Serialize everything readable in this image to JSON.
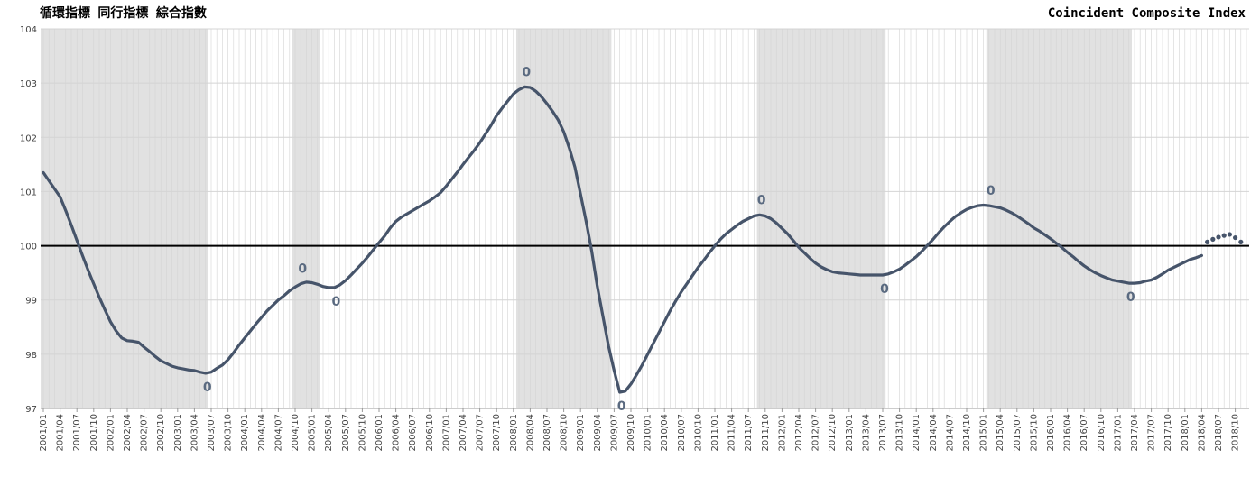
{
  "chart_data": {
    "type": "line",
    "title": "循環指標 同行指標 綜合指數",
    "subtitle": "Coincident Composite Index",
    "categories": [
      "2001/01",
      null,
      null,
      "2001/04",
      null,
      null,
      "2001/07",
      null,
      null,
      "2001/10",
      null,
      null,
      "2002/01",
      null,
      null,
      "2002/04",
      null,
      null,
      "2002/07",
      null,
      null,
      "2002/10",
      null,
      null,
      "2003/01",
      null,
      null,
      "2003/04",
      null,
      null,
      "2003/07",
      null,
      null,
      "2003/10",
      null,
      null,
      "2004/01",
      null,
      null,
      "2004/04",
      null,
      null,
      "2004/07",
      null,
      null,
      "2004/10",
      null,
      null,
      "2005/01",
      null,
      null,
      "2005/04",
      null,
      null,
      "2005/07",
      null,
      null,
      "2005/10",
      null,
      null,
      "2006/01",
      null,
      null,
      "2006/04",
      null,
      null,
      "2006/07",
      null,
      null,
      "2006/10",
      null,
      null,
      "2007/01",
      null,
      null,
      "2007/04",
      null,
      null,
      "2007/07",
      null,
      null,
      "2007/10",
      null,
      null,
      "2008/01",
      null,
      null,
      "2008/04",
      null,
      null,
      "2008/07",
      null,
      null,
      "2008/10",
      null,
      null,
      "2009/01",
      null,
      null,
      "2009/04",
      null,
      null,
      "2009/07",
      null,
      null,
      "2009/10",
      null,
      null,
      "2010/01",
      null,
      null,
      "2010/04",
      null,
      null,
      "2010/07",
      null,
      null,
      "2010/10",
      null,
      null,
      "2011/01",
      null,
      null,
      "2011/04",
      null,
      null,
      "2011/07",
      null,
      null,
      "2011/10",
      null,
      null,
      "2012/01",
      null,
      null,
      "2012/04",
      null,
      null,
      "2012/07",
      null,
      null,
      "2012/10",
      null,
      null,
      "2013/01",
      null,
      null,
      "2013/04",
      null,
      null,
      "2013/07",
      null,
      null,
      "2013/10",
      null,
      null,
      "2014/01",
      null,
      null,
      "2014/04",
      null,
      null,
      "2014/07",
      null,
      null,
      "2014/10",
      null,
      null,
      "2015/01",
      null,
      null,
      "2015/04",
      null,
      null,
      "2015/07",
      null,
      null,
      "2015/10",
      null,
      null,
      "2016/01",
      null,
      null,
      "2016/04",
      null,
      null,
      "2016/07",
      null,
      null,
      "2016/10",
      null,
      null,
      "2017/01",
      null,
      null,
      "2017/04",
      null,
      null,
      "2017/07",
      null,
      null,
      "2017/10",
      null,
      null,
      "2018/01",
      null,
      null,
      "2018/04",
      null,
      null,
      "2018/07",
      null,
      null,
      "2018/10",
      null,
      null
    ],
    "series": [
      {
        "color": "#46546a",
        "style": "solid",
        "values": [
          101.35,
          101.2,
          101.05,
          100.9,
          100.65,
          100.38,
          100.1,
          99.82,
          99.55,
          99.3,
          99.05,
          98.82,
          98.6,
          98.43,
          98.3,
          98.25,
          98.24,
          98.22,
          98.13,
          98.05,
          97.96,
          97.88,
          97.83,
          97.78,
          97.75,
          97.73,
          97.71,
          97.7,
          97.67,
          97.65,
          97.67,
          97.74,
          97.8,
          97.9,
          98.03,
          98.17,
          98.3,
          98.43,
          98.56,
          98.68,
          98.8,
          98.9,
          99.0,
          99.08,
          99.17,
          99.24,
          99.3,
          99.33,
          99.32,
          99.29,
          99.25,
          99.23,
          99.23,
          99.28,
          99.36,
          99.46,
          99.57,
          99.68,
          99.8,
          99.93,
          100.06,
          100.18,
          100.33,
          100.45,
          100.53,
          100.59,
          100.65,
          100.71,
          100.77,
          100.83,
          100.9,
          100.98,
          101.1,
          101.23,
          101.36,
          101.5,
          101.63,
          101.76,
          101.9,
          102.06,
          102.22,
          102.4,
          102.54,
          102.67,
          102.8,
          102.88,
          102.93,
          102.92,
          102.85,
          102.75,
          102.62,
          102.48,
          102.32,
          102.1,
          101.8,
          101.45,
          100.95,
          100.45,
          99.9,
          99.25,
          98.7,
          98.15,
          97.7,
          97.3,
          97.32,
          97.45,
          97.62,
          97.8,
          98.0,
          98.2,
          98.4,
          98.6,
          98.8,
          98.98,
          99.15,
          99.3,
          99.45,
          99.6,
          99.73,
          99.87,
          100.0,
          100.12,
          100.22,
          100.3,
          100.38,
          100.45,
          100.5,
          100.55,
          100.57,
          100.55,
          100.5,
          100.42,
          100.32,
          100.22,
          100.1,
          99.97,
          99.87,
          99.77,
          99.68,
          99.61,
          99.56,
          99.52,
          99.5,
          99.49,
          99.48,
          99.47,
          99.46,
          99.46,
          99.46,
          99.46,
          99.46,
          99.48,
          99.52,
          99.57,
          99.64,
          99.72,
          99.8,
          99.9,
          100.01,
          100.12,
          100.24,
          100.35,
          100.45,
          100.54,
          100.61,
          100.67,
          100.71,
          100.74,
          100.75,
          100.74,
          100.72,
          100.7,
          100.66,
          100.61,
          100.55,
          100.48,
          100.41,
          100.33,
          100.27,
          100.2,
          100.13,
          100.05,
          99.97,
          99.88,
          99.8,
          99.71,
          99.63,
          99.56,
          99.5,
          99.45,
          99.41,
          99.37,
          99.35,
          99.33,
          99.31,
          99.31,
          99.32,
          99.35,
          99.37,
          99.42,
          99.48,
          99.55,
          99.6,
          99.65,
          99.7,
          99.75,
          99.78,
          99.82,
          null,
          null,
          null,
          null,
          null,
          null,
          null,
          null
        ]
      },
      {
        "color": "#46546a",
        "style": "dots",
        "values": [
          null,
          null,
          null,
          null,
          null,
          null,
          null,
          null,
          null,
          null,
          null,
          null,
          null,
          null,
          null,
          null,
          null,
          null,
          null,
          null,
          null,
          null,
          null,
          null,
          null,
          null,
          null,
          null,
          null,
          null,
          null,
          null,
          null,
          null,
          null,
          null,
          null,
          null,
          null,
          null,
          null,
          null,
          null,
          null,
          null,
          null,
          null,
          null,
          null,
          null,
          null,
          null,
          null,
          null,
          null,
          null,
          null,
          null,
          null,
          null,
          null,
          null,
          null,
          null,
          null,
          null,
          null,
          null,
          null,
          null,
          null,
          null,
          null,
          null,
          null,
          null,
          null,
          null,
          null,
          null,
          null,
          null,
          null,
          null,
          null,
          null,
          null,
          null,
          null,
          null,
          null,
          null,
          null,
          null,
          null,
          null,
          null,
          null,
          null,
          null,
          null,
          null,
          null,
          null,
          null,
          null,
          null,
          null,
          null,
          null,
          null,
          null,
          null,
          null,
          null,
          null,
          null,
          null,
          null,
          null,
          null,
          null,
          null,
          null,
          null,
          null,
          null,
          null,
          null,
          null,
          null,
          null,
          null,
          null,
          null,
          null,
          null,
          null,
          null,
          null,
          null,
          null,
          null,
          null,
          null,
          null,
          null,
          null,
          null,
          null,
          null,
          null,
          null,
          null,
          null,
          null,
          null,
          null,
          null,
          null,
          null,
          null,
          null,
          null,
          null,
          null,
          null,
          null,
          null,
          null,
          null,
          null,
          null,
          null,
          null,
          null,
          null,
          null,
          null,
          null,
          null,
          null,
          null,
          null,
          null,
          null,
          null,
          null,
          null,
          null,
          null,
          null,
          null,
          null,
          null,
          null,
          null,
          null,
          null,
          null,
          null,
          null,
          null,
          null,
          null,
          null,
          null,
          null,
          100.07,
          100.12,
          100.16,
          100.19,
          100.21,
          100.15,
          100.07,
          null
        ]
      }
    ],
    "annotations": [
      {
        "text": "0"
      },
      {
        "text": "0"
      },
      {
        "text": "0"
      },
      {
        "text": "0"
      },
      {
        "text": "0"
      },
      {
        "text": "0"
      },
      {
        "text": "0"
      },
      {
        "text": "0"
      },
      {
        "text": "0"
      }
    ],
    "reference_line": 100,
    "ylim": [
      97,
      104
    ],
    "yticks": [
      97,
      98,
      99,
      100,
      101,
      102,
      103,
      104
    ],
    "grid": true,
    "shade_color": "#e1e1e1",
    "grid_color": "#d4d4d4"
  }
}
